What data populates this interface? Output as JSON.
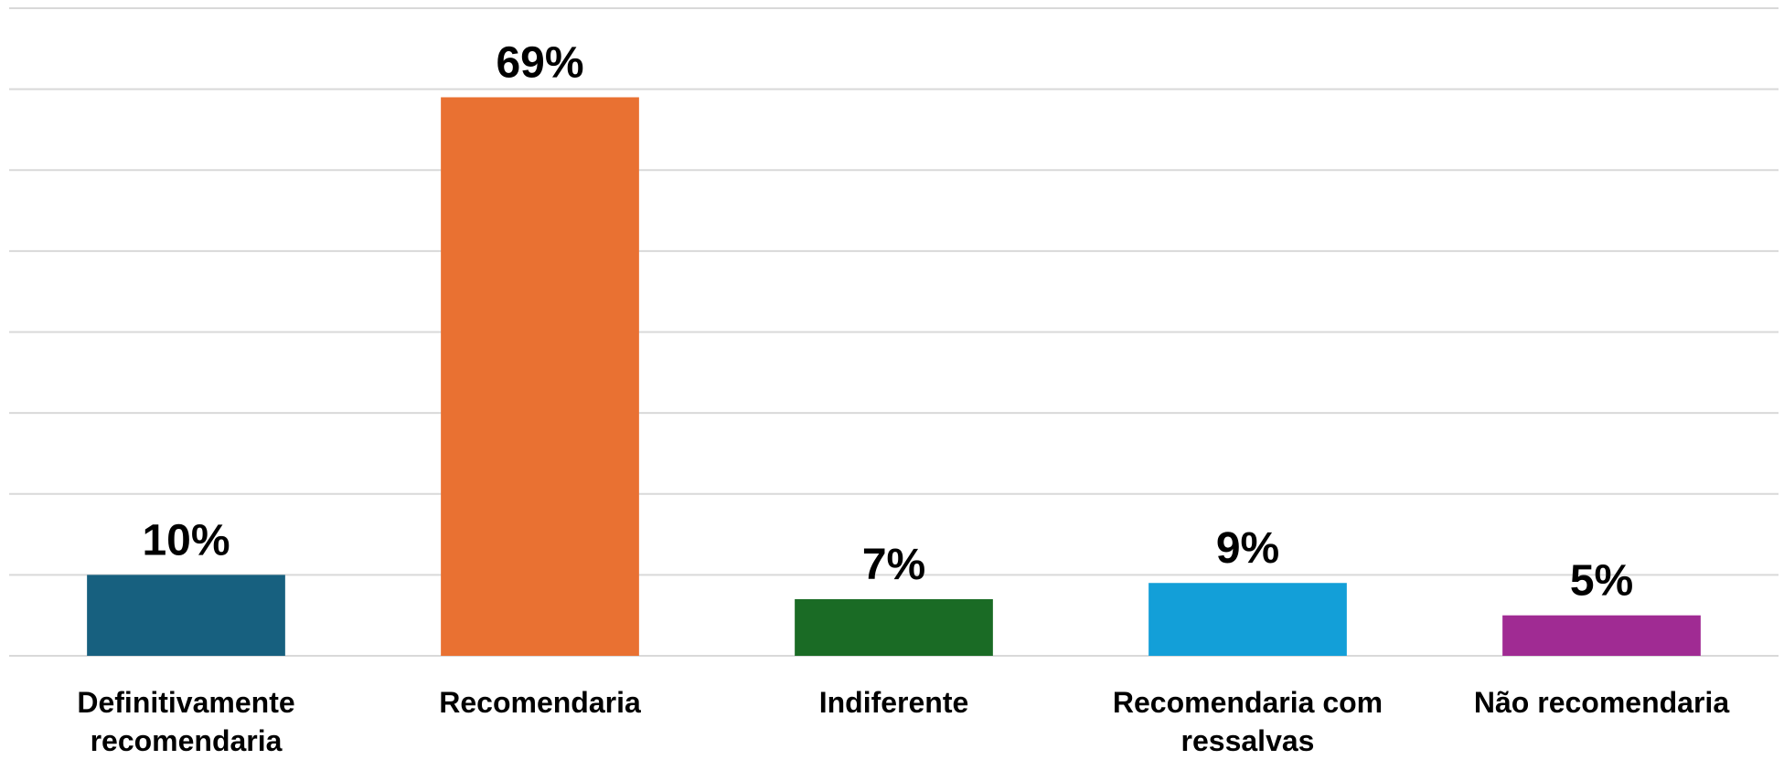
{
  "chart_data": {
    "type": "bar",
    "categories": [
      "Definitivamente recomendaria",
      "Recomendaria",
      "Indiferente",
      "Recomendaria com ressalvas",
      "Não recomendaria"
    ],
    "values": [
      10,
      69,
      7,
      9,
      5
    ],
    "value_labels": [
      "10%",
      "69%",
      "7%",
      "9%",
      "5%"
    ],
    "colors": [
      "#17607f",
      "#e97132",
      "#1a6b25",
      "#139fd8",
      "#a02b93"
    ],
    "ylim": [
      0,
      80
    ],
    "yticks": [
      0,
      10,
      20,
      30,
      40,
      50,
      60,
      70,
      80
    ],
    "grid": true
  }
}
